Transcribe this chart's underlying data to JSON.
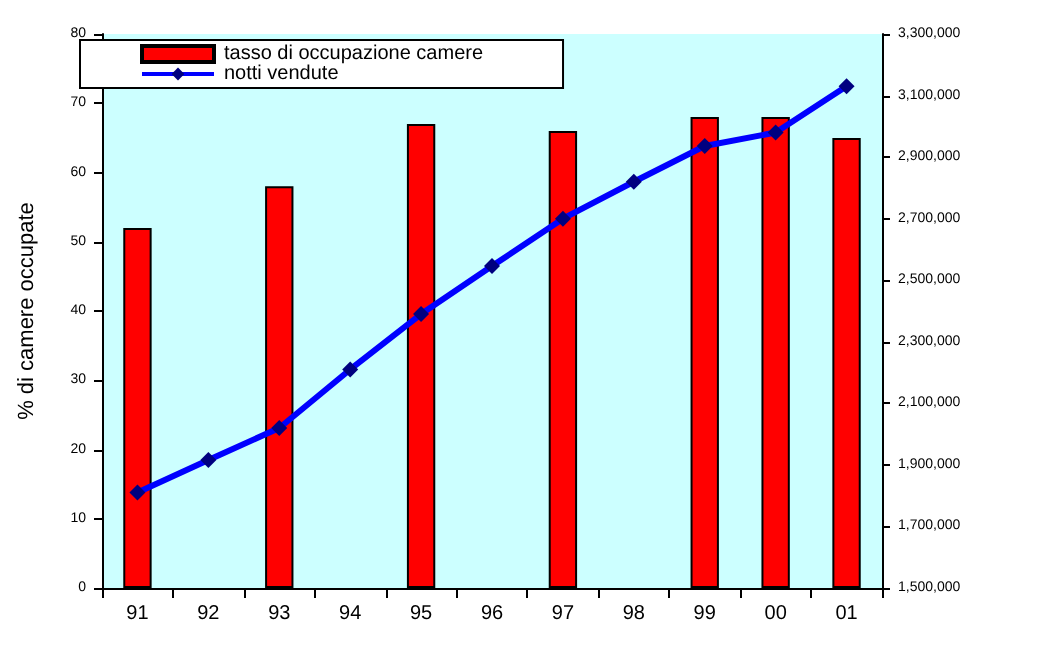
{
  "chart_data": {
    "type": "bar",
    "ylabel": "% di camere occupate",
    "categories": [
      "91",
      "92",
      "93",
      "94",
      "95",
      "96",
      "97",
      "98",
      "99",
      "00",
      "01"
    ],
    "series": [
      {
        "name": "tasso di occupazione camere",
        "color": "#ff0000",
        "values": [
          52,
          null,
          58,
          null,
          67,
          null,
          66,
          null,
          68,
          68,
          65
        ]
      },
      {
        "name": "notti vendute",
        "type": "line",
        "axis": "y2",
        "color": "#0000ff",
        "marker": "diamond",
        "values": [
          1810000,
          1916000,
          2020000,
          2210000,
          2390000,
          2546000,
          2700000,
          2820000,
          2936000,
          2980000,
          3130000
        ]
      }
    ],
    "ylim": [
      0,
      80
    ],
    "yticks": [
      0,
      10,
      20,
      30,
      40,
      50,
      60,
      70,
      80
    ],
    "y2lim": [
      1500000,
      3300000
    ],
    "y2ticks": [
      {
        "value": 1500000,
        "label": "1,500,000"
      },
      {
        "value": 1700000,
        "label": "1,700,000"
      },
      {
        "value": 1900000,
        "label": "1,900,000"
      },
      {
        "value": 2100000,
        "label": "2,100,000"
      },
      {
        "value": 2300000,
        "label": "2,300,000"
      },
      {
        "value": 2500000,
        "label": "2,500,000"
      },
      {
        "value": 2700000,
        "label": "2,700,000"
      },
      {
        "value": 2900000,
        "label": "2,900,000"
      },
      {
        "value": 3100000,
        "label": "3,100,000"
      },
      {
        "value": 3300000,
        "label": "3,300,000"
      }
    ],
    "grid": false,
    "legend": "top left"
  }
}
